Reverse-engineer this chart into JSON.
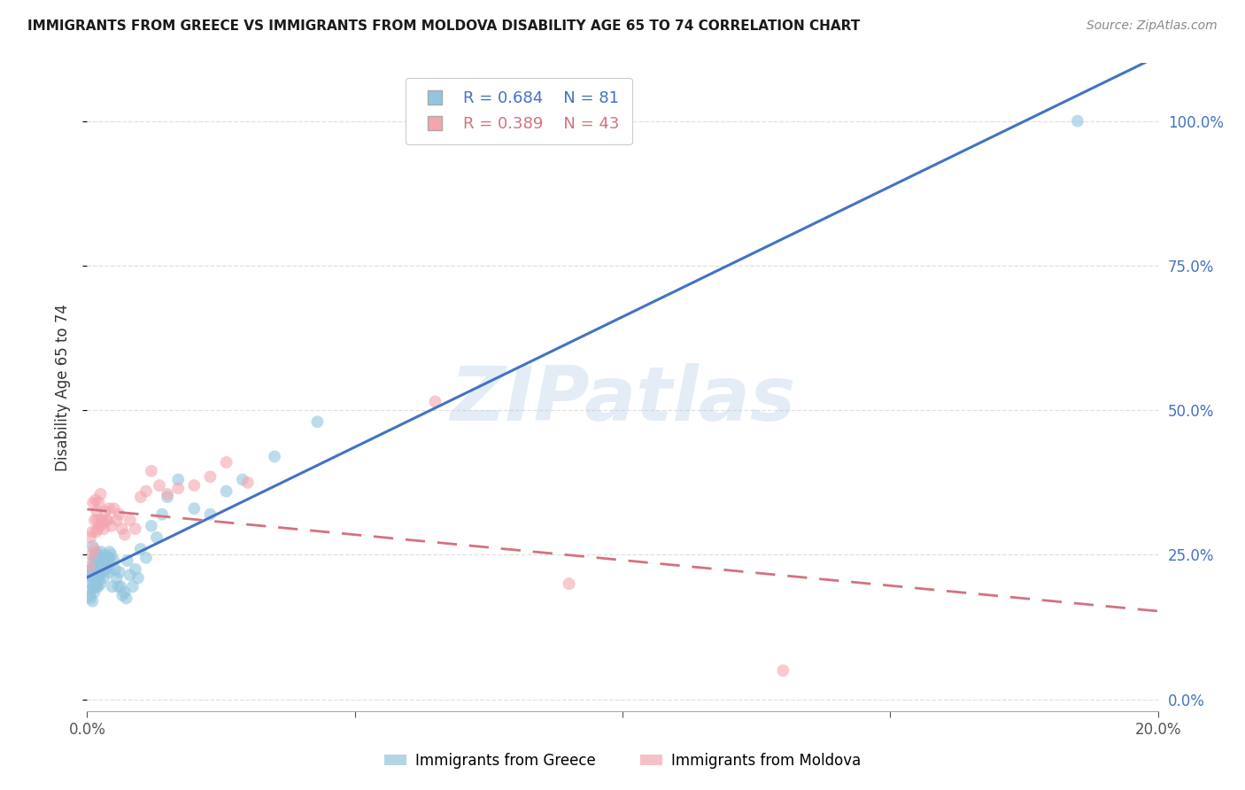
{
  "title": "IMMIGRANTS FROM GREECE VS IMMIGRANTS FROM MOLDOVA DISABILITY AGE 65 TO 74 CORRELATION CHART",
  "source": "Source: ZipAtlas.com",
  "ylabel": "Disability Age 65 to 74",
  "legend_labels": [
    "Immigrants from Greece",
    "Immigrants from Moldova"
  ],
  "greece_color": "#92c5de",
  "moldova_color": "#f4a5b0",
  "greece_line_color": "#4472c4",
  "moldova_line_color": "#d4717f",
  "greece_R": 0.684,
  "greece_N": 81,
  "moldova_R": 0.389,
  "moldova_N": 43,
  "watermark": "ZIPatlas",
  "xlim": [
    0.0,
    0.2
  ],
  "ylim": [
    -0.02,
    1.1
  ],
  "yticks": [
    0.0,
    0.25,
    0.5,
    0.75,
    1.0
  ],
  "xticks": [
    0.0,
    0.05,
    0.1,
    0.15,
    0.2
  ],
  "greece_x": [
    0.0004,
    0.0005,
    0.0006,
    0.0007,
    0.0008,
    0.0008,
    0.0009,
    0.001,
    0.001,
    0.001,
    0.0011,
    0.0012,
    0.0012,
    0.0013,
    0.0013,
    0.0014,
    0.0014,
    0.0015,
    0.0015,
    0.0016,
    0.0017,
    0.0017,
    0.0018,
    0.0018,
    0.0019,
    0.002,
    0.002,
    0.0021,
    0.0022,
    0.0022,
    0.0023,
    0.0024,
    0.0025,
    0.0025,
    0.0026,
    0.0027,
    0.0028,
    0.0029,
    0.003,
    0.0031,
    0.0032,
    0.0033,
    0.0034,
    0.0035,
    0.0036,
    0.0037,
    0.0038,
    0.004,
    0.0041,
    0.0042,
    0.0043,
    0.0045,
    0.0047,
    0.005,
    0.0052,
    0.0055,
    0.0058,
    0.006,
    0.0063,
    0.0066,
    0.007,
    0.0073,
    0.0075,
    0.008,
    0.0085,
    0.009,
    0.0095,
    0.01,
    0.011,
    0.012,
    0.013,
    0.014,
    0.015,
    0.017,
    0.02,
    0.023,
    0.026,
    0.029,
    0.035,
    0.043,
    0.185
  ],
  "greece_y": [
    0.215,
    0.18,
    0.175,
    0.2,
    0.19,
    0.225,
    0.21,
    0.17,
    0.225,
    0.265,
    0.215,
    0.195,
    0.24,
    0.185,
    0.23,
    0.2,
    0.245,
    0.195,
    0.25,
    0.215,
    0.225,
    0.255,
    0.195,
    0.24,
    0.21,
    0.195,
    0.25,
    0.21,
    0.245,
    0.215,
    0.21,
    0.22,
    0.2,
    0.235,
    0.255,
    0.225,
    0.23,
    0.245,
    0.235,
    0.21,
    0.235,
    0.25,
    0.225,
    0.23,
    0.245,
    0.225,
    0.23,
    0.22,
    0.245,
    0.255,
    0.235,
    0.25,
    0.195,
    0.24,
    0.225,
    0.21,
    0.195,
    0.22,
    0.195,
    0.18,
    0.185,
    0.175,
    0.24,
    0.215,
    0.195,
    0.225,
    0.21,
    0.26,
    0.245,
    0.3,
    0.28,
    0.32,
    0.35,
    0.38,
    0.33,
    0.32,
    0.36,
    0.38,
    0.42,
    0.48,
    1.0
  ],
  "moldova_x": [
    0.0004,
    0.0006,
    0.0008,
    0.001,
    0.0011,
    0.0013,
    0.0014,
    0.0016,
    0.0017,
    0.0018,
    0.0019,
    0.002,
    0.0022,
    0.0024,
    0.0025,
    0.0027,
    0.0029,
    0.0031,
    0.0033,
    0.0036,
    0.0038,
    0.0041,
    0.0045,
    0.005,
    0.0055,
    0.006,
    0.0065,
    0.007,
    0.008,
    0.009,
    0.01,
    0.011,
    0.012,
    0.0135,
    0.015,
    0.017,
    0.02,
    0.023,
    0.026,
    0.03,
    0.065,
    0.09,
    0.13
  ],
  "moldova_y": [
    0.23,
    0.28,
    0.25,
    0.29,
    0.34,
    0.26,
    0.31,
    0.345,
    0.29,
    0.325,
    0.31,
    0.295,
    0.34,
    0.3,
    0.355,
    0.31,
    0.305,
    0.295,
    0.325,
    0.31,
    0.31,
    0.33,
    0.3,
    0.33,
    0.31,
    0.32,
    0.295,
    0.285,
    0.31,
    0.295,
    0.35,
    0.36,
    0.395,
    0.37,
    0.355,
    0.365,
    0.37,
    0.385,
    0.41,
    0.375,
    0.515,
    0.2,
    0.05
  ],
  "background_color": "#ffffff",
  "grid_color": "#e0e0e0"
}
